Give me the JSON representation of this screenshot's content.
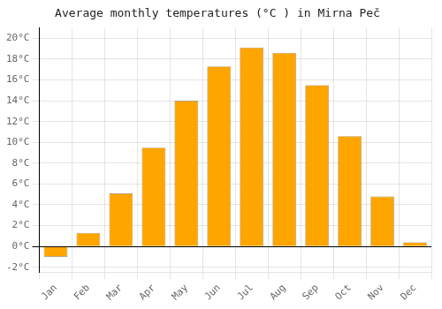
{
  "chart_data": {
    "type": "bar",
    "title": "Average monthly temperatures (°C ) in Mirna Peč",
    "categories": [
      "Jan",
      "Feb",
      "Mar",
      "Apr",
      "May",
      "Jun",
      "Jul",
      "Aug",
      "Sep",
      "Oct",
      "Nov",
      "Dec"
    ],
    "values": [
      -1.0,
      1.3,
      5.1,
      9.5,
      14.0,
      17.3,
      19.1,
      18.6,
      15.5,
      10.6,
      4.8,
      0.4
    ],
    "color": "#FFA500",
    "ylim": [
      -2.5,
      21.0
    ],
    "yticks": [
      {
        "value": -2,
        "label": "-2°C"
      },
      {
        "value": 0,
        "label": "0°C"
      },
      {
        "value": 2,
        "label": "2°C"
      },
      {
        "value": 4,
        "label": "4°C"
      },
      {
        "value": 6,
        "label": "6°C"
      },
      {
        "value": 8,
        "label": "8°C"
      },
      {
        "value": 10,
        "label": "10°C"
      },
      {
        "value": 12,
        "label": "12°C"
      },
      {
        "value": 14,
        "label": "14°C"
      },
      {
        "value": 16,
        "label": "16°C"
      },
      {
        "value": 18,
        "label": "18°C"
      },
      {
        "value": 20,
        "label": "20°C"
      }
    ],
    "grid": true
  }
}
